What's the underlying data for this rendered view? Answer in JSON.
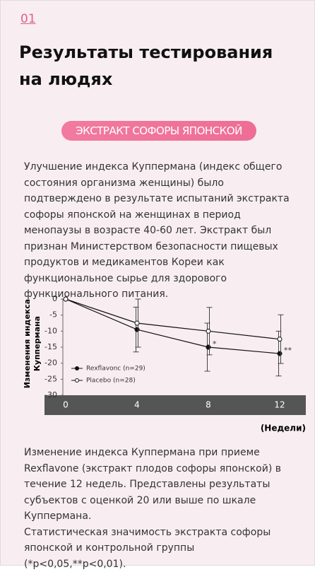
{
  "header": {
    "number": "01",
    "title": "Результаты тестирования на людях"
  },
  "badge": "ЭКСТРАКТ СОФОРЫ ЯПОНСКОЙ",
  "intro": "Улучшение индекса Куппермана (индекс общего состояния организма женщины) было подтверждено в результате испытаний экстракта софоры японской на женщинах в период менопаузы в возрасте 40-60 лет. Экстракт был признан Министерством безопасности пищевых продуктов и медикаментов Кореи как функциональное сырье для здорового функционального питания.",
  "chart_data": {
    "type": "line",
    "y_label": [
      "Изменения индекса",
      "Куппермана"
    ],
    "x_label": "(Недели)",
    "categories": [
      "0",
      "4",
      "8",
      "12"
    ],
    "series": [
      {
        "name": "Rexflavonc (n=29)",
        "color": "#111111",
        "marker": "filled",
        "values": [
          0,
          -9.5,
          -15,
          -17
        ],
        "errors": [
          null,
          7,
          7.5,
          7
        ],
        "significance": [
          null,
          null,
          "*",
          "**"
        ]
      },
      {
        "name": "Placebo (n=28)",
        "color": "#111111",
        "marker": "open",
        "values": [
          0,
          -7.5,
          -10,
          -12.5
        ],
        "errors": [
          null,
          7.5,
          7.4,
          7.6
        ],
        "significance": [
          null,
          null,
          null,
          null
        ]
      }
    ],
    "ylim": [
      -30,
      0
    ],
    "yticks": [
      0,
      -5,
      -10,
      -15,
      -20,
      -25,
      -30
    ]
  },
  "caption": [
    "Изменение индекса Куппермана при приеме Rexflavone (экстракт плодов софоры японской) в течение 12 недель. Представлены результаты субъектов с оценкой 20 или выше по шкале Куппермана.",
    "Статистическая значимость экстракта софоры японской и контрольной группы (*p<0,05,**p<0,01)."
  ]
}
